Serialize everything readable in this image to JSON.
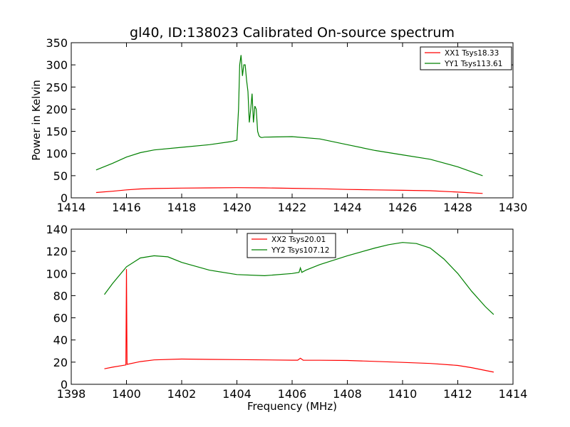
{
  "figure": {
    "title": "gl40, ID:138023 Calibrated On-source spectrum",
    "xlabel": "Frequency (MHz)",
    "ylabel": "Power in Kelvin"
  },
  "colors": {
    "red": "#ff0000",
    "green": "#008000"
  },
  "chart_data": [
    {
      "type": "line",
      "panel": "top",
      "xlim": [
        1414,
        1430
      ],
      "ylim": [
        0,
        350
      ],
      "xticks": [
        1414,
        1416,
        1418,
        1420,
        1422,
        1424,
        1426,
        1428,
        1430
      ],
      "yticks": [
        0,
        50,
        100,
        150,
        200,
        250,
        300,
        350
      ],
      "ylabel": "Power in Kelvin",
      "legend_position": "top-right",
      "grid": false,
      "series": [
        {
          "name": "XX1 Tsys18.33",
          "color": "#ff0000",
          "x": [
            1414.9,
            1415.5,
            1416.0,
            1416.5,
            1417.0,
            1418.0,
            1419.0,
            1420.0,
            1421.0,
            1422.0,
            1423.0,
            1424.0,
            1425.0,
            1426.0,
            1427.0,
            1428.0,
            1428.9
          ],
          "y": [
            12,
            15,
            18,
            20,
            21,
            22,
            22.5,
            23,
            22.5,
            21.5,
            20.5,
            19,
            18,
            17,
            16,
            13,
            10
          ]
        },
        {
          "name": "YY1 Tsys113.61",
          "color": "#008000",
          "x": [
            1414.9,
            1415.5,
            1416.0,
            1416.5,
            1417.0,
            1418.0,
            1419.0,
            1419.8,
            1420.0,
            1420.06,
            1420.1,
            1420.15,
            1420.2,
            1420.25,
            1420.3,
            1420.35,
            1420.4,
            1420.45,
            1420.5,
            1420.55,
            1420.6,
            1420.65,
            1420.7,
            1420.75,
            1420.8,
            1420.85,
            1420.9,
            1421.0,
            1422.0,
            1423.0,
            1424.0,
            1425.0,
            1426.0,
            1427.0,
            1428.0,
            1428.9
          ],
          "y": [
            63,
            78,
            92,
            102,
            108,
            114,
            120,
            127,
            130,
            200,
            300,
            322,
            275,
            300,
            300,
            265,
            240,
            170,
            200,
            235,
            170,
            207,
            200,
            150,
            140,
            137,
            136,
            137,
            138,
            133,
            120,
            107,
            97,
            87,
            70,
            50
          ]
        }
      ]
    },
    {
      "type": "line",
      "panel": "bottom",
      "xlim": [
        1398,
        1414
      ],
      "ylim": [
        0,
        140
      ],
      "xticks": [
        1398,
        1400,
        1402,
        1404,
        1406,
        1408,
        1410,
        1412,
        1414
      ],
      "yticks": [
        0,
        20,
        40,
        60,
        80,
        100,
        120,
        140
      ],
      "xlabel": "Frequency (MHz)",
      "legend_position": "top-center",
      "grid": false,
      "series": [
        {
          "name": "XX2 Tsys20.01",
          "color": "#ff0000",
          "x": [
            1399.2,
            1399.5,
            1399.98,
            1400.0,
            1400.02,
            1400.5,
            1401.0,
            1402.0,
            1403.0,
            1404.0,
            1405.0,
            1406.0,
            1406.2,
            1406.3,
            1406.4,
            1407.0,
            1408.0,
            1409.0,
            1410.0,
            1411.0,
            1412.0,
            1412.5,
            1413.3
          ],
          "y": [
            14,
            15.5,
            17.5,
            104,
            18,
            20.5,
            22,
            22.8,
            22.5,
            22.3,
            22,
            21.8,
            21.8,
            23.5,
            21.8,
            21.7,
            21.5,
            20.7,
            19.8,
            18.8,
            17,
            15,
            11
          ]
        },
        {
          "name": "YY2 Tsys107.12",
          "color": "#008000",
          "x": [
            1399.2,
            1399.5,
            1400.0,
            1400.5,
            1401.0,
            1401.5,
            1402.0,
            1403.0,
            1404.0,
            1405.0,
            1406.0,
            1406.25,
            1406.3,
            1406.35,
            1406.5,
            1407.0,
            1408.0,
            1409.0,
            1409.5,
            1410.0,
            1410.5,
            1411.0,
            1411.5,
            1412.0,
            1412.5,
            1413.0,
            1413.3
          ],
          "y": [
            81,
            91,
            106,
            114,
            116,
            115,
            110,
            103,
            99,
            98,
            100,
            101,
            105,
            101,
            103,
            108,
            116,
            123,
            126,
            128,
            127,
            123,
            113,
            100,
            84,
            70,
            63
          ]
        }
      ]
    }
  ]
}
